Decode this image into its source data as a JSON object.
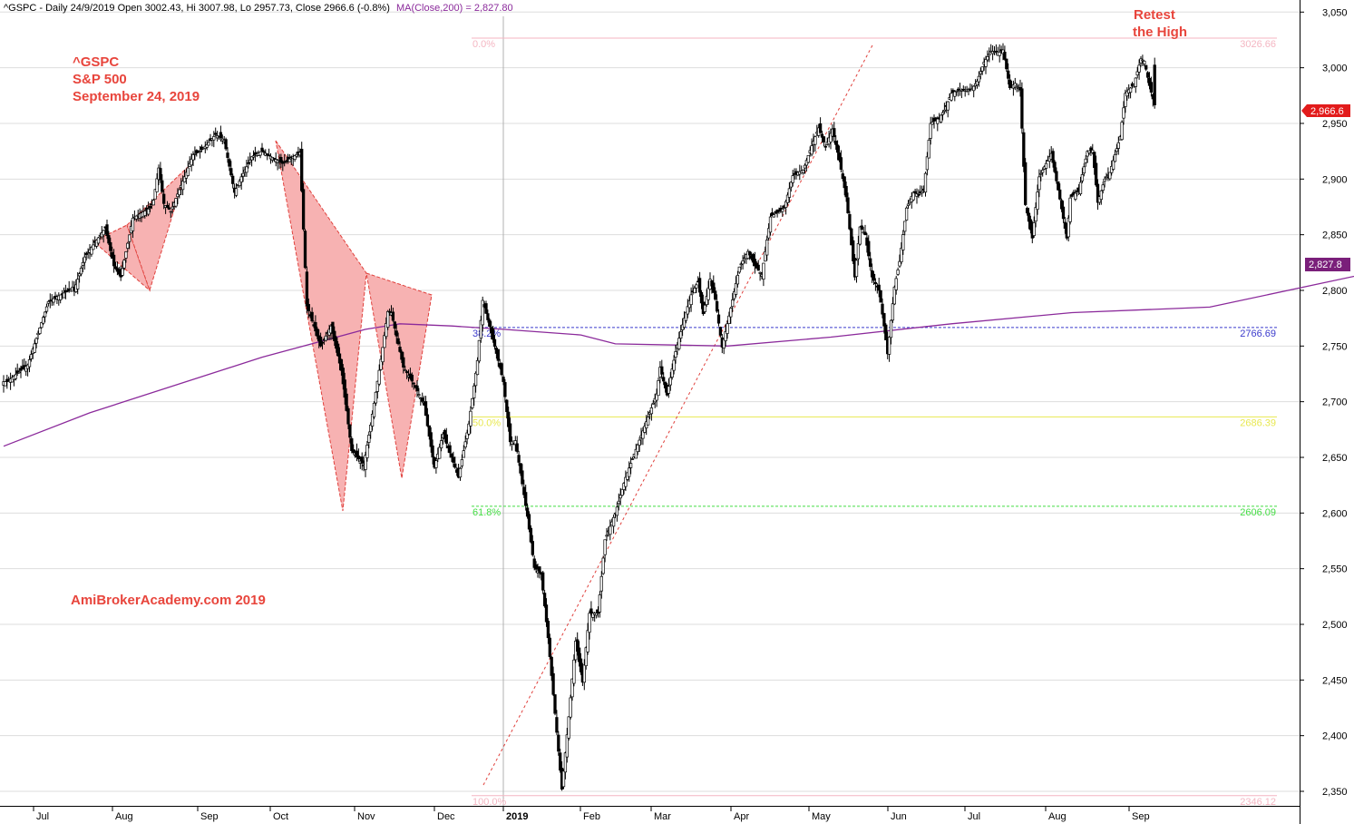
{
  "header": {
    "text": "^GSPC - Daily 24/9/2019 Open 3002.43, Hi 3007.98, Lo 2957.73, Close 2966.6 (-0.8%)",
    "ma_text": "MA(Close,200) = 2,827.80"
  },
  "annotations": {
    "ticker": "^GSPC",
    "name": "S&P 500",
    "date": "September 24, 2019",
    "watermark": "AmiBrokerAcademy.com  2019",
    "retest_line1": "Retest",
    "retest_line2": "the High"
  },
  "colors": {
    "up_candle": "#ffffff",
    "down_candle": "#000000",
    "ma": "#8b2a9b",
    "pattern_fill": "#f7b2b2",
    "pattern_edge": "#e0403c",
    "trendline": "#e0403c",
    "annotation": "#e8453c",
    "fib_0": "#f4b6c2",
    "fib_38": "#3a3acc",
    "fib_50": "#e8e850",
    "fib_61": "#44dd44",
    "fib_100": "#f4b6c2",
    "grid": "#dddddd",
    "close_badge": "#e21b1b",
    "ma_badge": "#7a1f7a"
  },
  "chart_data": {
    "type": "candlestick",
    "title": "^GSPC - Daily 24/9/2019",
    "x_labels": [
      "Jul",
      "Aug",
      "Sep",
      "Oct",
      "Nov",
      "Dec",
      "2019",
      "Feb",
      "Mar",
      "Apr",
      "May",
      "Jun",
      "Jul",
      "Aug",
      "Sep"
    ],
    "y_ticks": [
      "2,350",
      "2,400",
      "2,450",
      "2,500",
      "2,550",
      "2,600",
      "2,650",
      "2,700",
      "2,750",
      "2,800",
      "2,850",
      "2,900",
      "2,950",
      "3,000",
      "3,050"
    ],
    "ylim": [
      2330,
      3080
    ],
    "grid": "horizontal",
    "last_bar": {
      "date": "24/9/2019",
      "open": 3002.43,
      "high": 3007.98,
      "low": 2957.73,
      "close": 2966.6,
      "change_pct": -0.8
    },
    "price_badge": "2,966.6",
    "ma_badge": "2,827.8",
    "ma_200_last": 2827.8,
    "fibonacci": [
      {
        "pct": "0.0%",
        "value": "3026.66"
      },
      {
        "pct": "38.2%",
        "value": "2766.69"
      },
      {
        "pct": "50.0%",
        "value": "2686.39"
      },
      {
        "pct": "61.8%",
        "value": "2606.09"
      },
      {
        "pct": "100.0%",
        "value": "2346.12"
      }
    ],
    "close_path": [
      [
        2718,
        2
      ],
      [
        2733,
        14
      ],
      [
        2790,
        26
      ],
      [
        2801,
        39
      ],
      [
        2803,
        40
      ],
      [
        2800,
        41
      ],
      [
        2830,
        47
      ],
      [
        2856,
        59
      ],
      [
        2822,
        64
      ],
      [
        2812,
        68
      ],
      [
        2865,
        75
      ],
      [
        2874,
        85
      ],
      [
        2881,
        87
      ],
      [
        2910,
        90
      ],
      [
        2878,
        93
      ],
      [
        2871,
        97
      ],
      [
        2906,
        106
      ],
      [
        2922,
        110
      ],
      [
        2925,
        114
      ],
      [
        2931,
        118
      ],
      [
        2940,
        123
      ],
      [
        2935,
        128
      ],
      [
        2888,
        134
      ],
      [
        2902,
        138
      ],
      [
        2920,
        144
      ],
      [
        2925,
        150
      ],
      [
        2914,
        162
      ],
      [
        2924,
        172
      ],
      [
        2786,
        176
      ],
      [
        2750,
        184
      ],
      [
        2768,
        190
      ],
      [
        2728,
        196
      ],
      [
        2656,
        202
      ],
      [
        2643,
        209
      ],
      [
        2679,
        213
      ],
      [
        2738,
        219
      ],
      [
        2781,
        223
      ],
      [
        2780,
        225
      ],
      [
        2731,
        232
      ],
      [
        2716,
        238
      ],
      [
        2697,
        244
      ],
      [
        2641,
        250
      ],
      [
        2671,
        255
      ],
      [
        2650,
        260
      ],
      [
        2632,
        264
      ],
      [
        2680,
        270
      ],
      [
        2737,
        275
      ],
      [
        2791,
        278
      ],
      [
        2756,
        284
      ],
      [
        2718,
        290
      ],
      [
        2664,
        294
      ],
      [
        2665,
        297
      ],
      [
        2597,
        304
      ],
      [
        2551,
        308
      ],
      [
        2545,
        312
      ],
      [
        2488,
        316
      ],
      [
        2420,
        320
      ],
      [
        2352,
        324
      ],
      [
        2417,
        328
      ],
      [
        2485,
        332
      ],
      [
        2448,
        336
      ],
      [
        2510,
        340
      ],
      [
        2510,
        345
      ],
      [
        2576,
        349
      ],
      [
        2600,
        355
      ],
      [
        2632,
        361
      ],
      [
        2653,
        366
      ],
      [
        2682,
        373
      ],
      [
        2707,
        379
      ],
      [
        2731,
        381
      ],
      [
        2706,
        385
      ],
      [
        2745,
        390
      ],
      [
        2775,
        395
      ],
      [
        2796,
        399
      ],
      [
        2808,
        403
      ],
      [
        2779,
        406
      ],
      [
        2810,
        410
      ],
      [
        2792,
        413
      ],
      [
        2749,
        417
      ],
      [
        2784,
        422
      ],
      [
        2821,
        427
      ],
      [
        2835,
        432
      ],
      [
        2822,
        436
      ],
      [
        2814,
        440
      ],
      [
        2866,
        445
      ],
      [
        2869,
        448
      ],
      [
        2874,
        453
      ],
      [
        2903,
        458
      ],
      [
        2906,
        461
      ],
      [
        2908,
        464
      ],
      [
        2930,
        469
      ],
      [
        2946,
        473
      ],
      [
        2929,
        477
      ],
      [
        2945,
        481
      ],
      [
        2917,
        485
      ],
      [
        2884,
        489
      ],
      [
        2812,
        494
      ],
      [
        2857,
        497
      ],
      [
        2850,
        500
      ],
      [
        2812,
        504
      ],
      [
        2800,
        508
      ],
      [
        2768,
        511
      ],
      [
        2743,
        513
      ],
      [
        2803,
        517
      ],
      [
        2826,
        520
      ],
      [
        2874,
        524
      ],
      [
        2888,
        528
      ],
      [
        2886,
        531
      ],
      [
        2890,
        534
      ],
      [
        2950,
        538
      ],
      [
        2955,
        543
      ],
      [
        2962,
        546
      ],
      [
        2977,
        550
      ],
      [
        2980,
        554
      ],
      [
        2980,
        558
      ],
      [
        2981,
        562
      ],
      [
        2988,
        565
      ],
      [
        3005,
        569
      ],
      [
        3015,
        573
      ],
      [
        3014,
        578
      ],
      [
        3016,
        580
      ],
      [
        2982,
        584
      ],
      [
        2986,
        587
      ],
      [
        2980,
        590
      ],
      [
        2877,
        593
      ],
      [
        2847,
        597
      ],
      [
        2902,
        601
      ],
      [
        2911,
        604
      ],
      [
        2923,
        608
      ],
      [
        2882,
        613
      ],
      [
        2847,
        617
      ],
      [
        2883,
        619
      ],
      [
        2890,
        624
      ],
      [
        2925,
        629
      ],
      [
        2926,
        632
      ],
      [
        2879,
        635
      ],
      [
        2900,
        639
      ],
      [
        2906,
        642
      ],
      [
        2938,
        648
      ],
      [
        2977,
        651
      ],
      [
        2985,
        656
      ],
      [
        3008,
        660
      ],
      [
        3006,
        662
      ],
      [
        2984,
        665
      ],
      [
        2966,
        668
      ]
    ],
    "ma_200_path": [
      [
        2660,
        0
      ],
      [
        2690,
        50
      ],
      [
        2740,
        150
      ],
      [
        2765,
        210
      ],
      [
        2770,
        230
      ],
      [
        2768,
        260
      ],
      [
        2765,
        290
      ],
      [
        2760,
        335
      ],
      [
        2752,
        355
      ],
      [
        2750,
        420
      ],
      [
        2758,
        480
      ],
      [
        2770,
        550
      ],
      [
        2780,
        620
      ],
      [
        2785,
        700
      ],
      [
        2818,
        800
      ],
      [
        2830,
        840
      ]
    ]
  }
}
